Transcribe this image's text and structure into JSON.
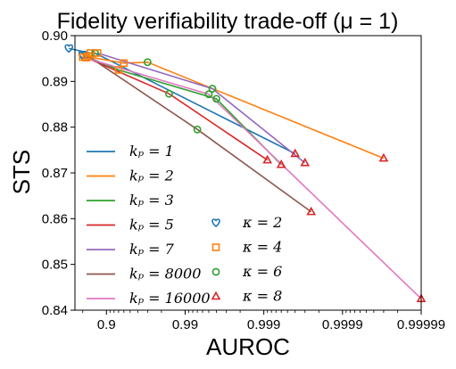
{
  "chart_data": {
    "type": "line",
    "title": "Fidelity verifiability trade-off (μ = 1)",
    "xlabel": "AUROC",
    "ylabel": "STS",
    "x_scale": "logit",
    "xlim": [
      0.0,
      0.99999
    ],
    "ylim": [
      0.84,
      0.9
    ],
    "xticks": [
      "0.9",
      "0.99",
      "0.999",
      "0.9999",
      "0.99999"
    ],
    "yticks": [
      "0.84",
      "0.85",
      "0.86",
      "0.87",
      "0.88",
      "0.89",
      "0.90"
    ],
    "grid": false,
    "kappa_markers": [
      {
        "label": "κ = 2",
        "marker": "heart",
        "color": "#1f77b4"
      },
      {
        "label": "κ = 4",
        "marker": "square",
        "color": "#ff7f0e"
      },
      {
        "label": "κ = 6",
        "marker": "circle",
        "color": "#2ca02c"
      },
      {
        "label": "κ = 8",
        "marker": "triangle",
        "color": "#d62728"
      }
    ],
    "series": [
      {
        "name": "k_p = 1",
        "color": "#1f77b4",
        "points": [
          [
            0.7,
            0.8972
          ],
          [
            0.84,
            0.8962
          ],
          [
            0.86,
            0.8962
          ],
          [
            0.9996,
            0.8742
          ]
        ]
      },
      {
        "name": "k_p = 2",
        "color": "#ff7f0e",
        "points": [
          [
            0.8,
            0.8956
          ],
          [
            0.94,
            0.894
          ],
          [
            0.97,
            0.8942
          ],
          [
            0.99997,
            0.8732
          ]
        ]
      },
      {
        "name": "k_p = 3",
        "color": "#2ca02c",
        "points": [
          [
            0.8,
            0.8958
          ],
          [
            0.93,
            0.8925
          ],
          [
            0.996,
            0.8862
          ],
          [
            0.9994,
            0.8718
          ]
        ]
      },
      {
        "name": "k_p = 5",
        "color": "#d62728",
        "points": [
          [
            0.82,
            0.8952
          ],
          [
            0.984,
            0.8873
          ],
          [
            0.9991,
            0.8728
          ]
        ]
      },
      {
        "name": "k_p = 7",
        "color": "#9467bd",
        "points": [
          [
            0.87,
            0.8962
          ],
          [
            0.9955,
            0.8884
          ],
          [
            0.9997,
            0.8722
          ]
        ]
      },
      {
        "name": "k_p = 8000",
        "color": "#8c564b",
        "points": [
          [
            0.83,
            0.8955
          ],
          [
            0.993,
            0.8795
          ],
          [
            0.99975,
            0.8615
          ]
        ]
      },
      {
        "name": "k_p = 16000",
        "color": "#e377c2",
        "points": [
          [
            0.8,
            0.8953
          ],
          [
            0.995,
            0.8872
          ],
          [
            0.99999,
            0.8425
          ]
        ]
      }
    ]
  },
  "legend": {
    "kp_labels": [
      "k_p = 1",
      "k_p = 2",
      "k_p = 3",
      "k_p = 5",
      "k_p = 7",
      "k_p = 8000",
      "k_p = 16000"
    ],
    "kappa_labels": [
      "κ = 2",
      "κ = 4",
      "κ = 6",
      "κ = 8"
    ]
  }
}
